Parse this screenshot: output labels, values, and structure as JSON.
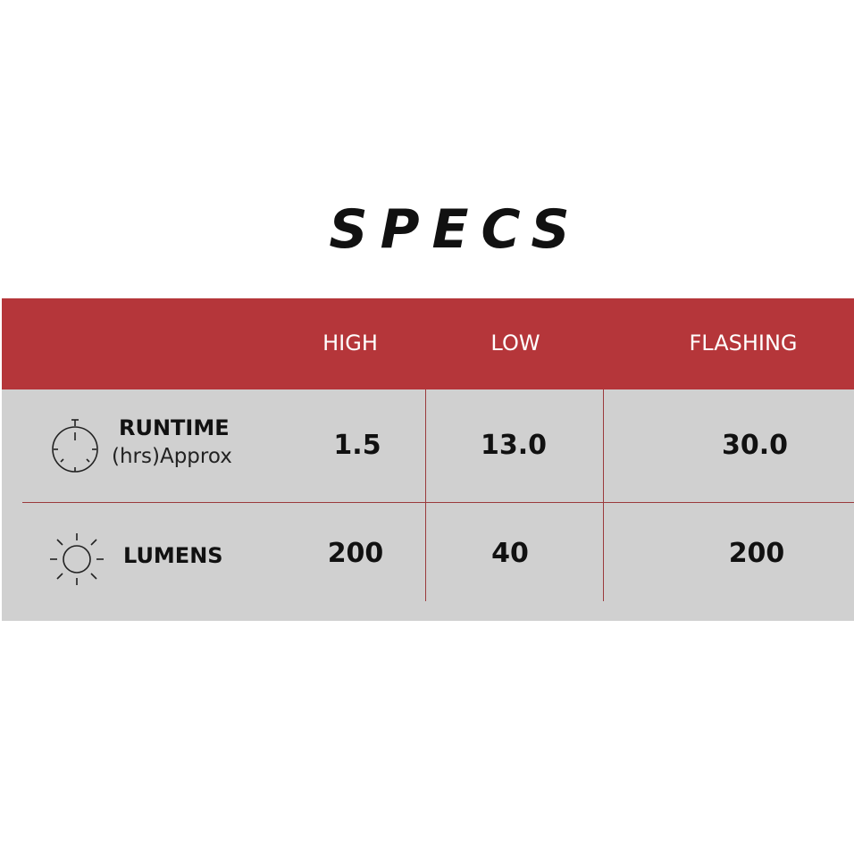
{
  "title": "SPECS",
  "colors": {
    "header": "#b5363a",
    "body": "#d0d0d0",
    "divider": "#9b3a3c"
  },
  "columns": [
    "HIGH",
    "LOW",
    "FLASHING"
  ],
  "rows": [
    {
      "icon": "stopwatch-icon",
      "label": "RUNTIME",
      "sublabel": "(hrs)Approx",
      "values": [
        "1.5",
        "13.0",
        "30.0"
      ]
    },
    {
      "icon": "sun-icon",
      "label": "LUMENS",
      "values": [
        "200",
        "40",
        "200"
      ]
    }
  ]
}
